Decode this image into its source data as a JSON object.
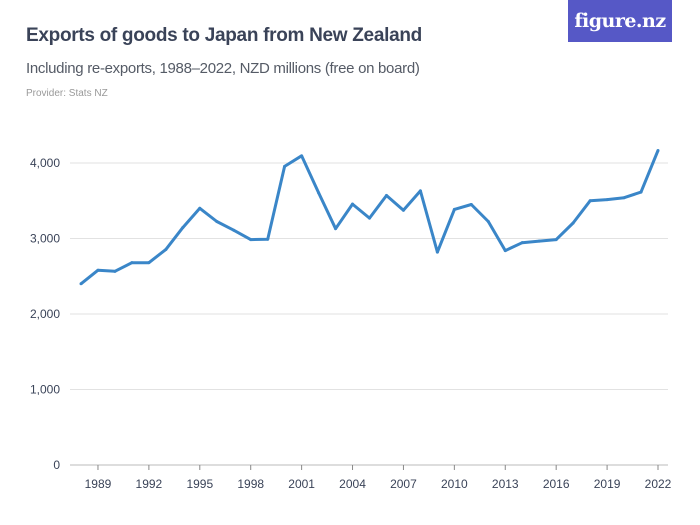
{
  "header": {
    "title": "Exports of goods to Japan from New Zealand",
    "subtitle": "Including re-exports, 1988–2022, NZD millions (free on board)",
    "provider": "Provider: Stats NZ",
    "logo": "figure.nz"
  },
  "chart_data": {
    "type": "line",
    "title": "Exports of goods to Japan from New Zealand",
    "subtitle": "Including re-exports, 1988–2022, NZD millions (free on board)",
    "xlabel": "",
    "ylabel": "",
    "ylim": [
      0,
      4000
    ],
    "grid": true,
    "line_color": "#3a86c8",
    "y_ticks": [
      {
        "value": 0,
        "label": "0"
      },
      {
        "value": 1000,
        "label": "1,000"
      },
      {
        "value": 2000,
        "label": "2,000"
      },
      {
        "value": 3000,
        "label": "3,000"
      },
      {
        "value": 4000,
        "label": "4,000"
      }
    ],
    "x_ticks": [
      1989,
      1992,
      1995,
      1998,
      2001,
      2004,
      2007,
      2010,
      2013,
      2016,
      2019,
      2022
    ],
    "x": [
      1988,
      1989,
      1990,
      1991,
      1992,
      1993,
      1994,
      1995,
      1996,
      1997,
      1998,
      1999,
      2000,
      2001,
      2002,
      2003,
      2004,
      2005,
      2006,
      2007,
      2008,
      2009,
      2010,
      2011,
      2012,
      2013,
      2014,
      2015,
      2016,
      2017,
      2018,
      2019,
      2020,
      2021,
      2022
    ],
    "values": [
      2400,
      2580,
      2565,
      2680,
      2680,
      2855,
      3145,
      3400,
      3225,
      3110,
      2985,
      2990,
      3955,
      4095,
      3605,
      3130,
      3455,
      3270,
      3570,
      3375,
      3630,
      2820,
      3385,
      3450,
      3225,
      2840,
      2945,
      2965,
      2985,
      3205,
      3500,
      3515,
      3540,
      3615,
      4165
    ]
  }
}
